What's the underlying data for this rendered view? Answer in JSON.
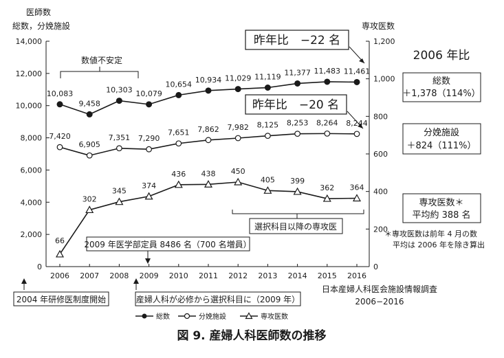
{
  "chart_data": {
    "type": "line",
    "caption": "図 9.  産婦人科医師数の推移",
    "left_axis_title_line1": "医師数",
    "left_axis_title_line2": "総数，分娩施設",
    "right_axis_title": "専攻医数",
    "x": [
      "2006",
      "2007",
      "2008",
      "2009",
      "2010",
      "2011",
      "2012",
      "2013",
      "2014",
      "2015",
      "2016"
    ],
    "y_left_ticks": [
      "0",
      "2,000",
      "4,000",
      "6,000",
      "8,000",
      "10,000",
      "12,000",
      "14,000"
    ],
    "y_right_ticks": [
      "0",
      "200",
      "400",
      "600",
      "800",
      "1,000",
      "1,200"
    ],
    "ylim_left": [
      0,
      14000
    ],
    "ylim_right": [
      0,
      1200
    ],
    "series": [
      {
        "name": "総数",
        "axis": "left",
        "marker": "filled-circle",
        "values": [
          10083,
          9458,
          10303,
          10079,
          10654,
          10934,
          11029,
          11119,
          11377,
          11483,
          11461
        ],
        "labels": [
          "10,083",
          "9,458",
          "10,303",
          "10,079",
          "10,654",
          "10,934",
          "11,029",
          "11,119",
          "11,377",
          "11,483",
          "11,461"
        ]
      },
      {
        "name": "分娩施設",
        "axis": "left",
        "marker": "open-circle",
        "values": [
          7420,
          6905,
          7351,
          7290,
          7651,
          7862,
          7982,
          8125,
          8253,
          8264,
          8244
        ],
        "labels": [
          "7,420",
          "6,905",
          "7,351",
          "7,290",
          "7,651",
          "7,862",
          "7,982",
          "8,125",
          "8,253",
          "8,264",
          "8,244"
        ]
      },
      {
        "name": "専攻医数",
        "axis": "right",
        "marker": "open-triangle",
        "values": [
          66,
          302,
          345,
          374,
          436,
          438,
          450,
          405,
          399,
          362,
          364
        ],
        "labels": [
          "66",
          "302",
          "345",
          "374",
          "436",
          "438",
          "450",
          "405",
          "399",
          "362",
          "364"
        ]
      }
    ],
    "grid": false,
    "legend_position": "bottom-left"
  },
  "annotations": {
    "unstable_label": "数値不安定",
    "yoy_total": "昨年比　−22 名",
    "yoy_delivery": "昨年比　−20 名",
    "side_title": "2006 年比",
    "total_box_line1": "総数",
    "total_box_line2": "＋1,378（114%）",
    "delivery_box_line1": "分娩施設",
    "delivery_box_line2": "＋824（111%）",
    "resident_box_line1": "専攻医数＊",
    "resident_box_line2": "平均約 388 名",
    "resident_note_line1": "＊専攻医数は前年 4 月の数",
    "resident_note_line2": "平均は 2006 年を除き算出",
    "elective_label": "選択科目以降の専攻医",
    "quota_label": "2009 年医学部定員 8486 名（700 名増員）",
    "training_start_label": "2004 年研修医制度開始",
    "obgyn_change_label": "産婦人科が必修から選択科目に（2009 年）",
    "source_line1": "日本産婦人科医会施設情報調査",
    "source_line2": "2006−2016"
  }
}
